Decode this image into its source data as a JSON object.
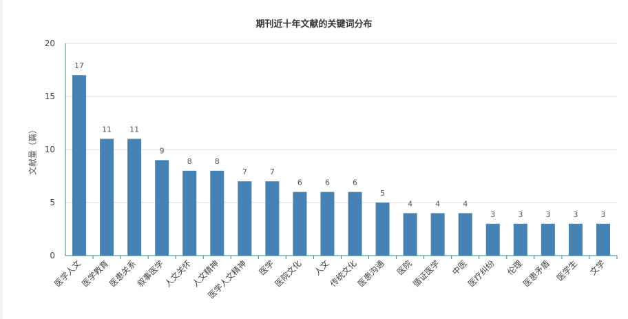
{
  "chart_data": {
    "type": "bar",
    "title": "期刊近十年文献的关键词分布",
    "xlabel": "",
    "ylabel": "文献量（篇）",
    "ylim": [
      0,
      20
    ],
    "yticks": [
      0,
      5,
      10,
      15,
      20
    ],
    "grid": true,
    "categories": [
      "医学人文",
      "医学教育",
      "医患关系",
      "叙事医学",
      "人文关怀",
      "人文精神",
      "医学人文精神",
      "医学",
      "医院文化",
      "人文",
      "传统文化",
      "医患沟通",
      "医院",
      "循证医学",
      "中医",
      "医疗纠纷",
      "伦理",
      "医患矛盾",
      "医学生",
      "文学"
    ],
    "values": [
      17,
      11,
      11,
      9,
      8,
      8,
      7,
      7,
      6,
      6,
      6,
      5,
      4,
      4,
      4,
      3,
      3,
      3,
      3,
      3
    ],
    "colors": {
      "bar": "#4682B4",
      "axis": "#2e8b8b",
      "grid": "#dddddd"
    }
  }
}
